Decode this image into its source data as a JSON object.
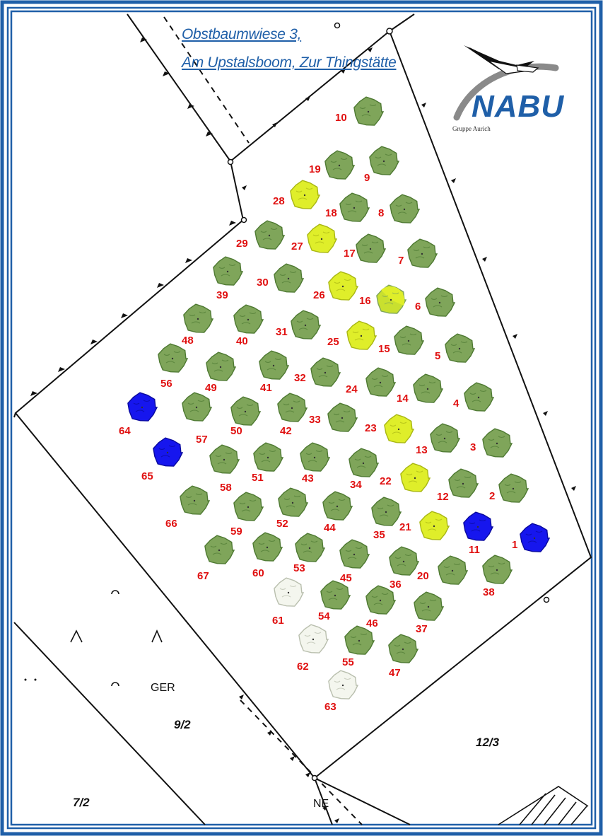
{
  "title": {
    "line1": "Obstbaumwiese 3,",
    "line2": "Am Upstalsboom, Zur Thingstätte"
  },
  "logo": {
    "word": "NABU",
    "subtitle": "Gruppe Aurich",
    "icon": "stork-icon"
  },
  "colors": {
    "frame": "#1f5fa8",
    "tree_green": "#7fa55a",
    "tree_yellow": "#dfee2a",
    "tree_blue": "#1616ee",
    "tree_empty": "#f1f3ea",
    "label": "#e01010"
  },
  "map_labels": [
    {
      "id": "parcel-9-2",
      "text": "9/2"
    },
    {
      "id": "parcel-12-3",
      "text": "12/3"
    },
    {
      "id": "parcel-7-2",
      "text": "7/2"
    },
    {
      "id": "street-ger",
      "text": "GER"
    },
    {
      "id": "street-ne",
      "text": "NE"
    }
  ],
  "trees": [
    {
      "n": "1",
      "status": "blue"
    },
    {
      "n": "2",
      "status": "green"
    },
    {
      "n": "3",
      "status": "green"
    },
    {
      "n": "4",
      "status": "green"
    },
    {
      "n": "5",
      "status": "green"
    },
    {
      "n": "6",
      "status": "green"
    },
    {
      "n": "7",
      "status": "green"
    },
    {
      "n": "8",
      "status": "green"
    },
    {
      "n": "9",
      "status": "green"
    },
    {
      "n": "10",
      "status": "green"
    },
    {
      "n": "11",
      "status": "blue"
    },
    {
      "n": "12",
      "status": "green"
    },
    {
      "n": "13",
      "status": "green"
    },
    {
      "n": "14",
      "status": "green"
    },
    {
      "n": "15",
      "status": "green"
    },
    {
      "n": "16",
      "status": "yellow-green"
    },
    {
      "n": "17",
      "status": "green"
    },
    {
      "n": "18",
      "status": "green"
    },
    {
      "n": "19",
      "status": "green"
    },
    {
      "n": "20",
      "status": "green"
    },
    {
      "n": "21",
      "status": "yellow"
    },
    {
      "n": "22",
      "status": "yellow"
    },
    {
      "n": "23",
      "status": "yellow"
    },
    {
      "n": "24",
      "status": "green"
    },
    {
      "n": "25",
      "status": "yellow"
    },
    {
      "n": "26",
      "status": "yellow"
    },
    {
      "n": "27",
      "status": "yellow"
    },
    {
      "n": "28",
      "status": "yellow"
    },
    {
      "n": "29",
      "status": "green"
    },
    {
      "n": "30",
      "status": "green"
    },
    {
      "n": "31",
      "status": "green"
    },
    {
      "n": "32",
      "status": "green"
    },
    {
      "n": "33",
      "status": "green"
    },
    {
      "n": "34",
      "status": "green"
    },
    {
      "n": "35",
      "status": "green"
    },
    {
      "n": "36",
      "status": "green"
    },
    {
      "n": "37",
      "status": "green"
    },
    {
      "n": "38",
      "status": "green"
    },
    {
      "n": "39",
      "status": "green"
    },
    {
      "n": "40",
      "status": "green"
    },
    {
      "n": "41",
      "status": "green"
    },
    {
      "n": "42",
      "status": "green"
    },
    {
      "n": "43",
      "status": "green"
    },
    {
      "n": "44",
      "status": "green"
    },
    {
      "n": "45",
      "status": "green"
    },
    {
      "n": "46",
      "status": "green"
    },
    {
      "n": "47",
      "status": "green"
    },
    {
      "n": "48",
      "status": "green"
    },
    {
      "n": "49",
      "status": "green"
    },
    {
      "n": "50",
      "status": "green"
    },
    {
      "n": "51",
      "status": "green"
    },
    {
      "n": "52",
      "status": "green"
    },
    {
      "n": "53",
      "status": "green"
    },
    {
      "n": "54",
      "status": "green"
    },
    {
      "n": "55",
      "status": "green"
    },
    {
      "n": "56",
      "status": "green"
    },
    {
      "n": "57",
      "status": "green"
    },
    {
      "n": "58",
      "status": "green"
    },
    {
      "n": "59",
      "status": "green"
    },
    {
      "n": "60",
      "status": "green"
    },
    {
      "n": "61",
      "status": "empty"
    },
    {
      "n": "62",
      "status": "empty"
    },
    {
      "n": "63",
      "status": "empty"
    },
    {
      "n": "64",
      "status": "blue"
    },
    {
      "n": "65",
      "status": "blue"
    },
    {
      "n": "66",
      "status": "green"
    },
    {
      "n": "67",
      "status": "green"
    }
  ]
}
